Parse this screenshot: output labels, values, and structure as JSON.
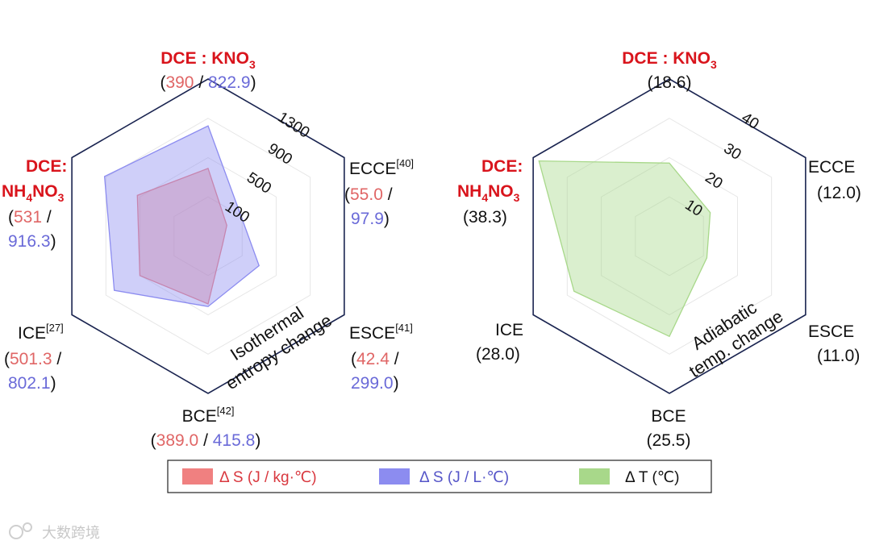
{
  "chart_data": [
    {
      "type": "radar",
      "title": "Isothermal entropy change",
      "categories": [
        "DCE : KNO3",
        "ECCE",
        "ESCE",
        "BCE",
        "ICE",
        "DCE: NH4NO3"
      ],
      "category_refs": [
        "",
        "[40]",
        "[41]",
        "[42]",
        "[27]",
        ""
      ],
      "radial_ticks": [
        "100",
        "500",
        "900",
        "1300"
      ],
      "series": [
        {
          "name": "Δ S (J / kg·℃)",
          "color": "#f08080",
          "labels": [
            "390",
            "55.0",
            "42.4",
            "389.0",
            "501.3",
            "531"
          ],
          "values": [
            390,
            55.0,
            42.4,
            389.0,
            501.3,
            531
          ]
        },
        {
          "name": "Δ S (J / L·℃)",
          "color": "#8c8cf0",
          "labels": [
            "822.9",
            "97.9",
            "299.0",
            "415.8",
            "802.1",
            "916.3"
          ],
          "values": [
            822.9,
            97.9,
            299.0,
            415.8,
            802.1,
            916.3
          ]
        }
      ]
    },
    {
      "type": "radar",
      "title": "Adiabatic temp. change",
      "categories": [
        "DCE : KNO3",
        "ECCE",
        "ESCE",
        "BCE",
        "ICE",
        "DCE: NH4NO3"
      ],
      "radial_ticks": [
        "10",
        "20",
        "30",
        "40"
      ],
      "series": [
        {
          "name": "Δ T (℃)",
          "color": "#a8d88a",
          "labels": [
            "18.6",
            "12.0",
            "11.0",
            "25.5",
            "28.0",
            "38.3"
          ],
          "values": [
            18.6,
            12.0,
            11.0,
            25.5,
            28.0,
            38.3
          ]
        }
      ]
    }
  ],
  "left_title_lines": [
    "Isothermal",
    "entropy change"
  ],
  "right_title_lines": [
    "Adiabatic",
    "temp. change"
  ],
  "legend": {
    "items": [
      {
        "label": "Δ S (J / kg·℃)",
        "color": "#f08080",
        "text_color": "#d9383f"
      },
      {
        "label": "Δ S (J / L·℃)",
        "color": "#8c8cf0",
        "text_color": "#5555c8"
      },
      {
        "label": "Δ T (℃)",
        "color": "#a8d88a",
        "text_color": "#111111"
      }
    ]
  },
  "watermark": "大数跨境",
  "colors": {
    "frame": "#1a2450",
    "grid": "#e6e6e6",
    "highlight": "#d9141c"
  }
}
